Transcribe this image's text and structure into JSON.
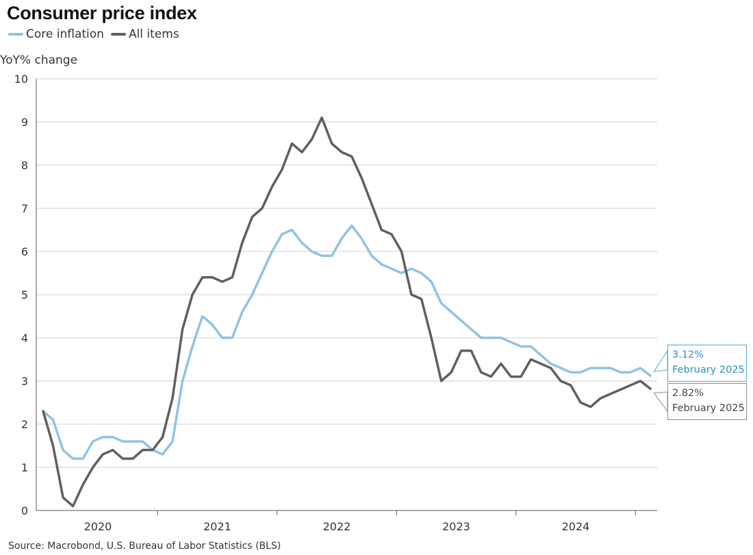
{
  "header": {
    "title": "Consumer price index",
    "source": "Source: Macrobond, U.S. Bureau of Labor Statistics (BLS)"
  },
  "legend": [
    {
      "label": "Core inflation",
      "color": "#8fc3e4"
    },
    {
      "label": "All items",
      "color": "#5f5f5f"
    }
  ],
  "callouts": {
    "core": {
      "value": "3.12%",
      "date": "February 2025"
    },
    "all": {
      "value": "2.82%",
      "date": "February 2025"
    }
  },
  "chart_data": {
    "type": "line",
    "title": "Consumer price index",
    "ylabel": "YoY% change",
    "xlabel": "",
    "ylim": [
      0,
      10
    ],
    "yticks": [
      0,
      1,
      2,
      3,
      4,
      5,
      6,
      7,
      8,
      9,
      10
    ],
    "xtick_labels": [
      "2020",
      "2021",
      "2022",
      "2023",
      "2024"
    ],
    "x_start": "2020-01",
    "x_end": "2025-02",
    "x": [
      "2020-01",
      "2020-02",
      "2020-03",
      "2020-04",
      "2020-05",
      "2020-06",
      "2020-07",
      "2020-08",
      "2020-09",
      "2020-10",
      "2020-11",
      "2020-12",
      "2021-01",
      "2021-02",
      "2021-03",
      "2021-04",
      "2021-05",
      "2021-06",
      "2021-07",
      "2021-08",
      "2021-09",
      "2021-10",
      "2021-11",
      "2021-12",
      "2022-01",
      "2022-02",
      "2022-03",
      "2022-04",
      "2022-05",
      "2022-06",
      "2022-07",
      "2022-08",
      "2022-09",
      "2022-10",
      "2022-11",
      "2022-12",
      "2023-01",
      "2023-02",
      "2023-03",
      "2023-04",
      "2023-05",
      "2023-06",
      "2023-07",
      "2023-08",
      "2023-09",
      "2023-10",
      "2023-11",
      "2023-12",
      "2024-01",
      "2024-02",
      "2024-03",
      "2024-04",
      "2024-05",
      "2024-06",
      "2024-07",
      "2024-08",
      "2024-09",
      "2024-10",
      "2024-11",
      "2024-12",
      "2025-01",
      "2025-02"
    ],
    "series": [
      {
        "name": "Core inflation",
        "color": "#8fc3e4",
        "values": [
          2.3,
          2.1,
          1.4,
          1.2,
          1.2,
          1.6,
          1.7,
          1.7,
          1.6,
          1.6,
          1.6,
          1.4,
          1.3,
          1.6,
          3.0,
          3.8,
          4.5,
          4.3,
          4.0,
          4.0,
          4.6,
          5.0,
          5.5,
          6.0,
          6.4,
          6.5,
          6.2,
          6.0,
          5.9,
          5.9,
          6.3,
          6.6,
          6.3,
          5.9,
          5.7,
          5.6,
          5.5,
          5.6,
          5.5,
          5.3,
          4.8,
          4.6,
          4.4,
          4.2,
          4.0,
          4.0,
          4.0,
          3.9,
          3.8,
          3.8,
          3.6,
          3.4,
          3.3,
          3.2,
          3.2,
          3.3,
          3.3,
          3.3,
          3.2,
          3.2,
          3.3,
          3.12
        ]
      },
      {
        "name": "All items",
        "color": "#5f5f5f",
        "values": [
          2.3,
          1.5,
          0.3,
          0.1,
          0.6,
          1.0,
          1.3,
          1.4,
          1.2,
          1.2,
          1.4,
          1.4,
          1.7,
          2.6,
          4.2,
          5.0,
          5.4,
          5.4,
          5.3,
          5.4,
          6.2,
          6.8,
          7.0,
          7.5,
          7.9,
          8.5,
          8.3,
          8.6,
          9.1,
          8.5,
          8.3,
          8.2,
          7.7,
          7.1,
          6.5,
          6.4,
          6.0,
          5.0,
          4.9,
          4.0,
          3.0,
          3.2,
          3.7,
          3.7,
          3.2,
          3.1,
          3.4,
          3.1,
          3.1,
          3.5,
          3.4,
          3.3,
          3.0,
          2.9,
          2.5,
          2.4,
          2.6,
          2.7,
          2.8,
          2.9,
          3.0,
          2.82
        ]
      }
    ],
    "grid": true,
    "legend_position": "top-left"
  }
}
